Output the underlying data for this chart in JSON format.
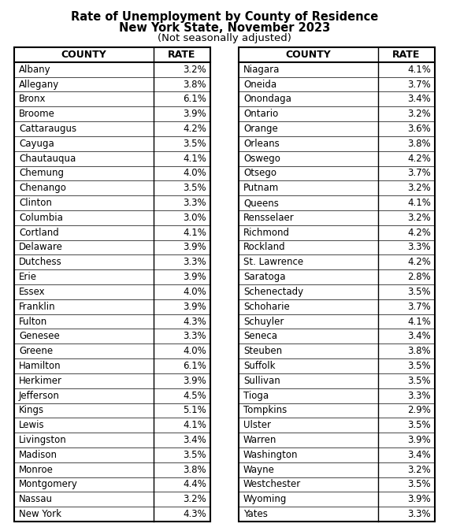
{
  "title_line1": "Rate of Unemployment by County of Residence",
  "title_line2": "New York State, November 2023",
  "title_line3": "(Not seasonally adjusted)",
  "left_counties": [
    "Albany",
    "Allegany",
    "Bronx",
    "Broome",
    "Cattaraugus",
    "Cayuga",
    "Chautauqua",
    "Chemung",
    "Chenango",
    "Clinton",
    "Columbia",
    "Cortland",
    "Delaware",
    "Dutchess",
    "Erie",
    "Essex",
    "Franklin",
    "Fulton",
    "Genesee",
    "Greene",
    "Hamilton",
    "Herkimer",
    "Jefferson",
    "Kings",
    "Lewis",
    "Livingston",
    "Madison",
    "Monroe",
    "Montgomery",
    "Nassau",
    "New York"
  ],
  "left_rates": [
    "3.2%",
    "3.8%",
    "6.1%",
    "3.9%",
    "4.2%",
    "3.5%",
    "4.1%",
    "4.0%",
    "3.5%",
    "3.3%",
    "3.0%",
    "4.1%",
    "3.9%",
    "3.3%",
    "3.9%",
    "4.0%",
    "3.9%",
    "4.3%",
    "3.3%",
    "4.0%",
    "6.1%",
    "3.9%",
    "4.5%",
    "5.1%",
    "4.1%",
    "3.4%",
    "3.5%",
    "3.8%",
    "4.4%",
    "3.2%",
    "4.3%"
  ],
  "right_counties": [
    "Niagara",
    "Oneida",
    "Onondaga",
    "Ontario",
    "Orange",
    "Orleans",
    "Oswego",
    "Otsego",
    "Putnam",
    "Queens",
    "Rensselaer",
    "Richmond",
    "Rockland",
    "St. Lawrence",
    "Saratoga",
    "Schenectady",
    "Schoharie",
    "Schuyler",
    "Seneca",
    "Steuben",
    "Suffolk",
    "Sullivan",
    "Tioga",
    "Tompkins",
    "Ulster",
    "Warren",
    "Washington",
    "Wayne",
    "Westchester",
    "Wyoming",
    "Yates"
  ],
  "right_rates": [
    "4.1%",
    "3.7%",
    "3.4%",
    "3.2%",
    "3.6%",
    "3.8%",
    "4.2%",
    "3.7%",
    "3.2%",
    "4.1%",
    "3.2%",
    "4.2%",
    "3.3%",
    "4.2%",
    "2.8%",
    "3.5%",
    "3.7%",
    "4.1%",
    "3.4%",
    "3.8%",
    "3.5%",
    "3.5%",
    "3.3%",
    "2.9%",
    "3.5%",
    "3.9%",
    "3.4%",
    "3.2%",
    "3.5%",
    "3.9%",
    "3.3%"
  ],
  "header_county": "COUNTY",
  "header_rate": "RATE",
  "bg_color": "#ffffff",
  "text_color": "#000000",
  "border_color": "#000000",
  "title_fontsize": 10.5,
  "subtitle_fontsize": 9.5,
  "header_fontsize": 9.0,
  "data_fontsize": 8.5
}
